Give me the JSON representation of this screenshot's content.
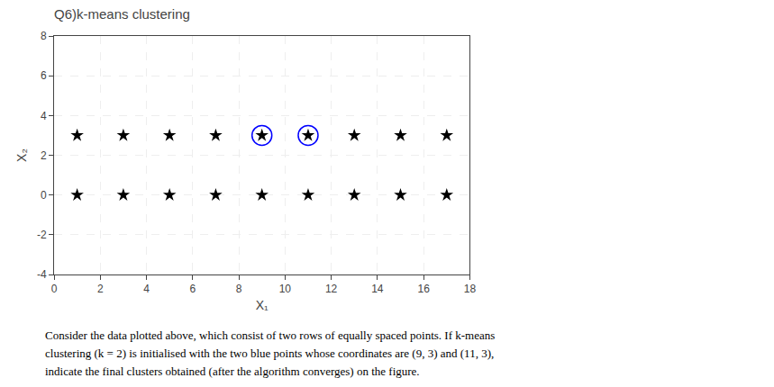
{
  "chart_data": {
    "type": "scatter",
    "title": "Q6)k-means clustering",
    "x_label": "X₁",
    "y_label": "X₂",
    "xlim": [
      0,
      18
    ],
    "ylim": [
      -4,
      8
    ],
    "xticks": [
      0,
      2,
      4,
      6,
      8,
      10,
      12,
      14,
      16,
      18
    ],
    "yticks": [
      -4,
      -2,
      0,
      2,
      4,
      6,
      8
    ],
    "grid": true,
    "series": [
      {
        "x": [
          1,
          3,
          5,
          7,
          9,
          11,
          13,
          15,
          17,
          1,
          3,
          5,
          7,
          9,
          11,
          13,
          15,
          17
        ],
        "values": [
          3,
          3,
          3,
          3,
          3,
          3,
          3,
          3,
          3,
          0,
          0,
          0,
          0,
          0,
          0,
          0,
          0,
          0
        ],
        "color": "black",
        "marker": "star"
      },
      {
        "x": [
          9,
          11
        ],
        "values": [
          3,
          3
        ],
        "color": "blue",
        "marker": "circle-open"
      }
    ],
    "annotations": [
      "Consider the data plotted above, which consist of two rows of equally spaced points. If k-means",
      "clustering (k = 2) is initialised with the two blue points whose coordinates are (9, 3) and (11, 3),",
      "indicate the final clusters obtained (after the algorithm converges) on the figure."
    ]
  }
}
